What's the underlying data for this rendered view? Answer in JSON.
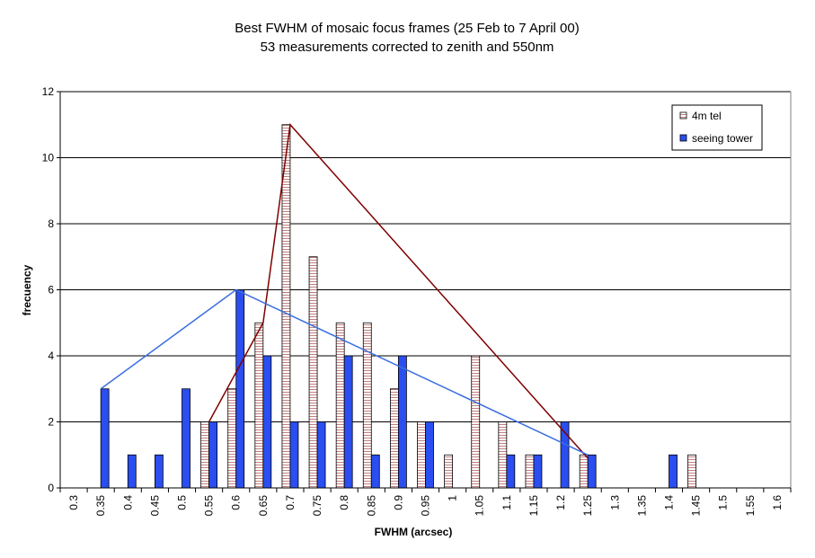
{
  "chart_data": {
    "type": "bar",
    "title": "Best FWHM of mosaic focus frames (25 Feb to 7 April 00)",
    "subtitle": "53 measurements corrected to zenith and 550nm",
    "xlabel": "FWHM (arcsec)",
    "ylabel": "frecuency",
    "ylim": [
      0,
      12
    ],
    "yticks": [
      "0",
      "2",
      "4",
      "6",
      "8",
      "10",
      "12"
    ],
    "grid": "horizontal",
    "legend_position": "top-right",
    "categories": [
      "0.3",
      "0.35",
      "0.4",
      "0.45",
      "0.5",
      "0.55",
      "0.6",
      "0.65",
      "0.7",
      "0.75",
      "0.8",
      "0.85",
      "0.9",
      "0.95",
      "1",
      "1.05",
      "1.1",
      "1.15",
      "1.2",
      "1.25",
      "1.3",
      "1.35",
      "1.4",
      "1.45",
      "1.5",
      "1.55",
      "1.6"
    ],
    "series": [
      {
        "name": "4m tel",
        "color": "#ffffff",
        "hatch": "#c08080",
        "values": [
          0,
          0,
          0,
          0,
          0,
          2,
          3,
          5,
          11,
          7,
          5,
          5,
          3,
          2,
          1,
          4,
          2,
          1,
          0,
          1,
          0,
          0,
          0,
          1,
          0,
          0,
          0
        ]
      },
      {
        "name": "seeing tower",
        "color": "#2a4ef0",
        "values": [
          0,
          3,
          1,
          1,
          3,
          2,
          6,
          4,
          2,
          2,
          4,
          1,
          4,
          2,
          0,
          0,
          1,
          1,
          2,
          1,
          0,
          0,
          1,
          0,
          0,
          0,
          0
        ]
      }
    ],
    "overlay_lines": [
      {
        "color": "#800000",
        "points": [
          [
            0.55,
            2
          ],
          [
            0.65,
            5
          ],
          [
            0.7,
            11
          ],
          [
            1.25,
            0.9
          ]
        ]
      },
      {
        "color": "#3a6ee0",
        "points": [
          [
            0.35,
            3
          ],
          [
            0.6,
            6
          ],
          [
            1.25,
            1
          ]
        ]
      }
    ]
  }
}
